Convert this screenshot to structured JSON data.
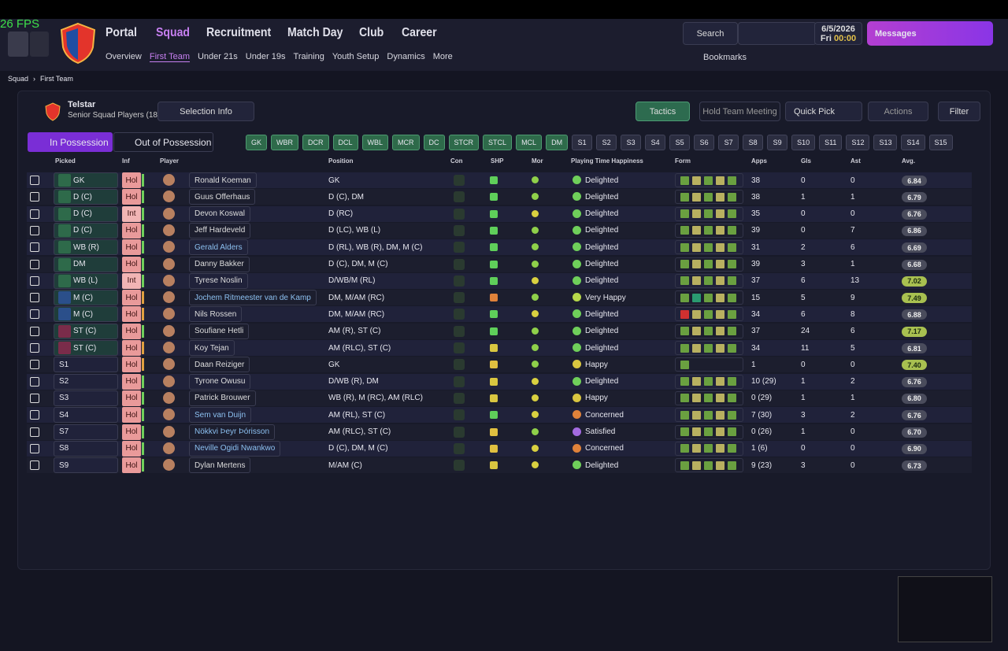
{
  "fps": "26 FPS",
  "nav": {
    "main": [
      "Portal",
      "Squad",
      "Recruitment",
      "Match Day",
      "Club",
      "Career"
    ],
    "sub": [
      "Overview",
      "First Team",
      "Under 21s",
      "Under 19s",
      "Training",
      "Youth Setup",
      "Dynamics",
      "More"
    ]
  },
  "top_right": {
    "search": "Search",
    "date": "6/5/2026",
    "day": "Fri",
    "time": "00:00",
    "messages": "Messages",
    "bookmarks": "Bookmarks"
  },
  "breadcrumb": [
    "Squad",
    "First Team"
  ],
  "team": {
    "name": "Telstar",
    "subtitle": "Senior Squad Players (18)",
    "selection": "Selection Info"
  },
  "buttons": {
    "tactics": "Tactics",
    "meeting": "Hold Team Meeting",
    "quick_pick": "Quick Pick",
    "actions": "Actions",
    "filter": "Filter"
  },
  "tabs": [
    "In Possession",
    "Out of Possession"
  ],
  "positions": [
    "GK",
    "WBR",
    "DCR",
    "DCL",
    "WBL",
    "MCR",
    "DC",
    "STCR",
    "STCL",
    "MCL",
    "DM",
    "S1",
    "S2",
    "S3",
    "S4",
    "S5",
    "S6",
    "S7",
    "S8",
    "S9",
    "S10",
    "S11",
    "S12",
    "S13",
    "S14",
    "S15"
  ],
  "table": {
    "columns": [
      "Picked",
      "Inf",
      "Player",
      "Position",
      "Con",
      "SHP",
      "Mor",
      "Playing Time Happiness",
      "Form",
      "Apps",
      "Gls",
      "Ast",
      "Avg."
    ],
    "rows": [
      [
        "GK",
        "Hol",
        "Ronald Koeman",
        "GK",
        "Delighted",
        "38",
        "0",
        "0",
        "6.84"
      ],
      [
        "D (C)",
        "Hol",
        "Guus Offerhaus",
        "D (C), DM",
        "Delighted",
        "38",
        "1",
        "1",
        "6.79"
      ],
      [
        "D (C)",
        "Int",
        "Devon Koswal",
        "D (RC)",
        "Delighted",
        "35",
        "0",
        "0",
        "6.76"
      ],
      [
        "D (C)",
        "Hol",
        "Jeff Hardeveld",
        "D (LC), WB (L)",
        "Delighted",
        "39",
        "0",
        "7",
        "6.86"
      ],
      [
        "WB (R)",
        "Hol",
        "Gerald Alders",
        "D (RL), WB (R), DM, M (C)",
        "Delighted",
        "31",
        "2",
        "6",
        "6.69"
      ],
      [
        "DM",
        "Hol",
        "Danny Bakker",
        "D (C), DM, M (C)",
        "Delighted",
        "39",
        "3",
        "1",
        "6.68"
      ],
      [
        "WB (L)",
        "Int",
        "Tyrese Noslin",
        "D/WB/M (RL)",
        "Delighted",
        "37",
        "6",
        "13",
        "7.02"
      ],
      [
        "M (C)",
        "Hol",
        "Jochem Ritmeester van de Kamp",
        "DM, M/AM (RC)",
        "Very Happy",
        "15",
        "5",
        "9",
        "7.49"
      ],
      [
        "M (C)",
        "Hol",
        "Nils Rossen",
        "DM, M/AM (RC)",
        "Delighted",
        "34",
        "6",
        "8",
        "6.88"
      ],
      [
        "ST (C)",
        "Hol",
        "Soufiane Hetli",
        "AM (R), ST (C)",
        "Delighted",
        "37",
        "24",
        "6",
        "7.17"
      ],
      [
        "ST (C)",
        "Hol",
        "Koy Tejan",
        "AM (RLC), ST (C)",
        "Delighted",
        "34",
        "11",
        "5",
        "6.81"
      ],
      [
        "S1",
        "Hol",
        "Daan Reiziger",
        "GK",
        "Happy",
        "1",
        "0",
        "0",
        "7.40"
      ],
      [
        "S2",
        "Hol",
        "Tyrone Owusu",
        "D/WB (R), DM",
        "Delighted",
        "10 (29)",
        "1",
        "2",
        "6.76"
      ],
      [
        "S3",
        "Hol",
        "Patrick Brouwer",
        "WB (R), M (RC), AM (RLC)",
        "Happy",
        "0 (29)",
        "1",
        "1",
        "6.80"
      ],
      [
        "S4",
        "Hol",
        "Sem van Duijn",
        "AM (RL), ST (C)",
        "Concerned",
        "7 (30)",
        "3",
        "2",
        "6.76"
      ],
      [
        "S7",
        "Hol",
        "Nökkvi Þeyr Þórisson",
        "AM (RLC), ST (C)",
        "Satisfied",
        "0 (26)",
        "1",
        "0",
        "6.70"
      ],
      [
        "S8",
        "Hol",
        "Neville Ogidi Nwankwo",
        "D (C), DM, M (C)",
        "Concerned",
        "1 (6)",
        "0",
        "0",
        "6.90"
      ],
      [
        "S9",
        "Hol",
        "Dylan Mertens",
        "M/AM (C)",
        "Delighted",
        "9 (23)",
        "3",
        "0",
        "6.73"
      ]
    ]
  }
}
